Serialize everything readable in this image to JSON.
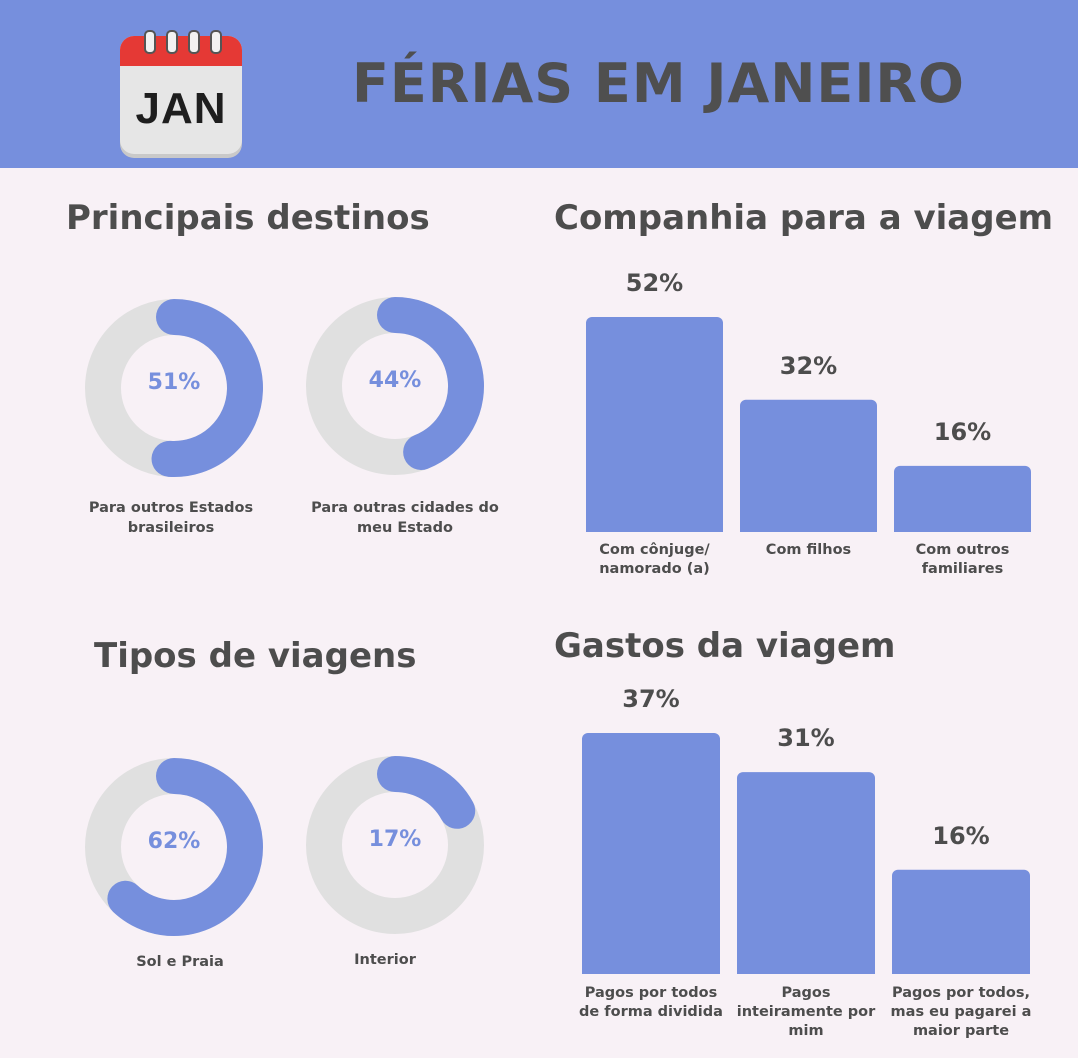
{
  "header": {
    "title": "FÉRIAS EM JANEIRO",
    "calendar_text": "JAN"
  },
  "colors": {
    "accent": "#768fdd",
    "track": "#e0e0e0",
    "background": "#f8f1f6",
    "calendar_red": "#e53935"
  },
  "destinos": {
    "title": "Principais destinos",
    "items": [
      {
        "value": 51,
        "label": "51%",
        "caption": "Para outros Estados brasileiros"
      },
      {
        "value": 44,
        "label": "44%",
        "caption": "Para outras cidades do meu Estado"
      }
    ]
  },
  "tipos": {
    "title": "Tipos de viagens",
    "items": [
      {
        "value": 62,
        "label": "62%",
        "caption": "Sol e Praia"
      },
      {
        "value": 17,
        "label": "17%",
        "caption": "Interior"
      }
    ]
  },
  "companhia": {
    "title": "Companhia para a viagem"
  },
  "gastos": {
    "title": "Gastos da viagem"
  },
  "chart_data": [
    {
      "type": "pie",
      "title": "Principais destinos",
      "categories": [
        "Para outros Estados brasileiros",
        "Para outras cidades do meu Estado"
      ],
      "values": [
        51,
        44
      ]
    },
    {
      "type": "bar",
      "title": "Companhia para a viagem",
      "categories": [
        "Com cônjuge/ namorado (a)",
        "Com filhos",
        "Com outros familiares"
      ],
      "values": [
        52,
        32,
        16
      ],
      "value_labels": [
        "52%",
        "32%",
        "16%"
      ],
      "ylim": [
        0,
        52
      ]
    },
    {
      "type": "pie",
      "title": "Tipos de viagens",
      "categories": [
        "Sol e Praia",
        "Interior"
      ],
      "values": [
        62,
        17
      ]
    },
    {
      "type": "bar",
      "title": "Gastos da viagem",
      "categories": [
        "Pagos por todos de forma dividida",
        "Pagos inteiramente por mim",
        "Pagos por todos, mas eu pagarei a maior parte"
      ],
      "values": [
        37,
        31,
        16
      ],
      "value_labels": [
        "37%",
        "31%",
        "16%"
      ],
      "ylim": [
        0,
        37
      ]
    }
  ]
}
